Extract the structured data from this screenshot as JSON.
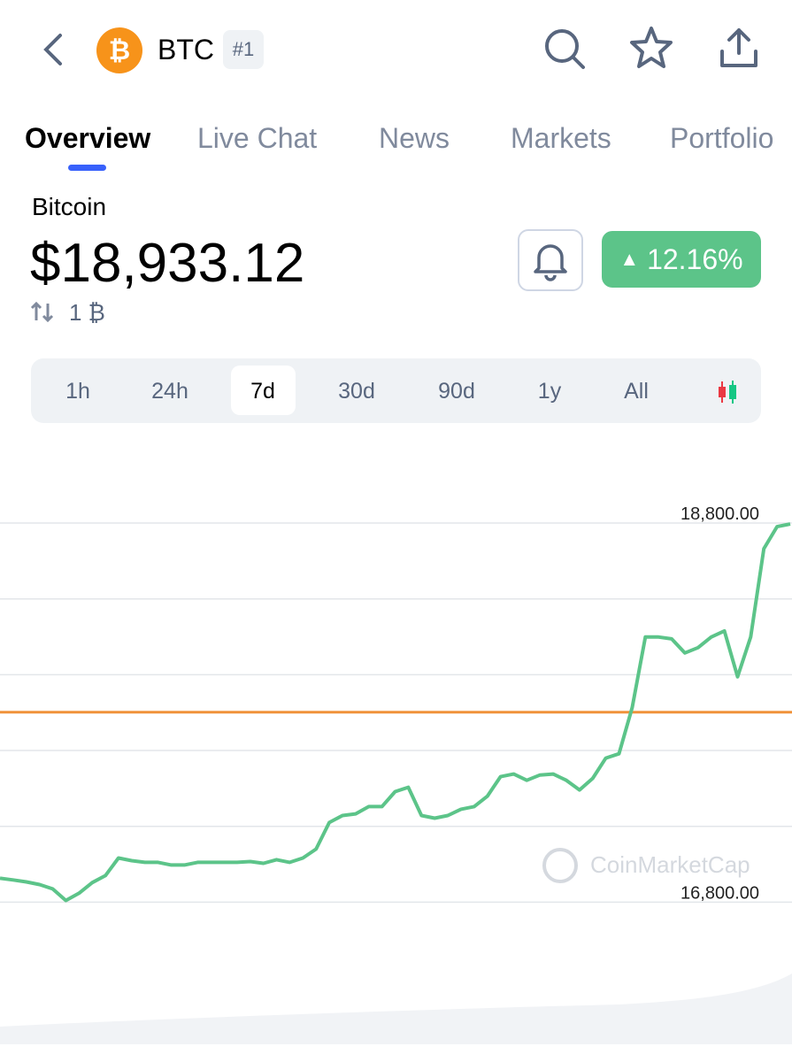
{
  "header": {
    "symbol": "BTC",
    "rank": "#1"
  },
  "tabs": [
    "Overview",
    "Live Chat",
    "News",
    "Markets",
    "Portfolio"
  ],
  "coin": {
    "name": "Bitcoin",
    "price": "$18,933.12",
    "change": "12.16%",
    "unit": "1 ₿"
  },
  "ranges": [
    "1h",
    "24h",
    "7d",
    "30d",
    "90d",
    "1y",
    "All"
  ],
  "chart_data": {
    "type": "line",
    "color": "#5cc489",
    "watermark": "CoinMarketCap",
    "values": [
      16926,
      16917,
      16907,
      16893,
      16870,
      16809,
      16847,
      16903,
      16940,
      17033,
      17019,
      17010,
      17010,
      16996,
      16996,
      17010,
      17010,
      17010,
      17010,
      17014,
      17005,
      17024,
      17010,
      17033,
      17080,
      17220,
      17257,
      17266,
      17304,
      17304,
      17383,
      17406,
      17257,
      17243,
      17257,
      17290,
      17304,
      17359,
      17462,
      17476,
      17443,
      17471,
      17476,
      17443,
      17392,
      17453,
      17560,
      17583,
      17826,
      18199,
      18199,
      18189,
      18115,
      18143,
      18199,
      18231,
      17989,
      18199,
      18665,
      18781,
      18795
    ],
    "reference_line": 17802,
    "reference_color": "#f0923a",
    "ylim": [
      16050,
      18945
    ],
    "yticks": [
      {
        "value": 18800,
        "label": "18,800.00"
      },
      {
        "value": 18400,
        "label": null
      },
      {
        "value": 18000,
        "label": null
      },
      {
        "value": 17600,
        "label": null
      },
      {
        "value": 17200,
        "label": null
      },
      {
        "value": 16800,
        "label": "16,800.00"
      }
    ],
    "grid": true
  }
}
